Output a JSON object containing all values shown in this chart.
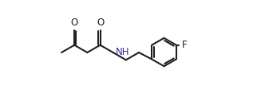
{
  "background_color": "#ffffff",
  "line_color": "#231f20",
  "nh_color": "#3b2d8e",
  "o_color": "#231f20",
  "f_color": "#231f20",
  "line_width": 1.5,
  "figsize": [
    3.22,
    1.32
  ],
  "dpi": 100,
  "font_size": 8.5,
  "xlim": [
    0.0,
    10.0
  ],
  "ylim": [
    -3.5,
    3.5
  ]
}
